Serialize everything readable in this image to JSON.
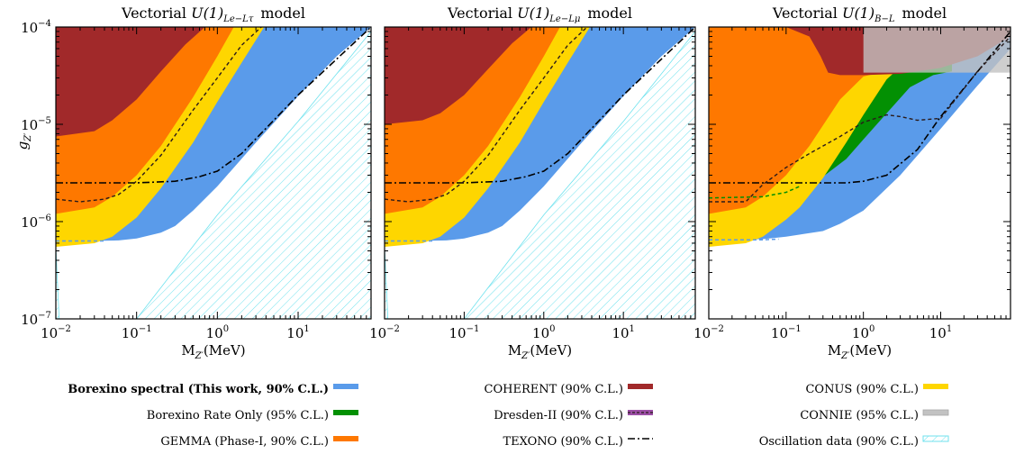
{
  "chart_data": [
    {
      "type": "area",
      "title_prefix": "Vectorial ",
      "title_math": "U(1)",
      "title_sub": "Le−Lτ",
      "title_suffix": "model",
      "xlabel": "M",
      "xlabel_sub": "Z′",
      "xlabel_unit": "(MeV)",
      "ylabel": "g",
      "ylabel_sub": "Z′",
      "x_scale": "log",
      "y_scale": "log",
      "xlim": [
        0.01,
        80
      ],
      "ylim": [
        1e-07,
        0.0001
      ],
      "x_ticks": [
        {
          "v": 0.01,
          "b": "10",
          "e": "−2"
        },
        {
          "v": 0.1,
          "b": "10",
          "e": "−1"
        },
        {
          "v": 1,
          "b": "10",
          "e": "0"
        },
        {
          "v": 10,
          "b": "10",
          "e": "1"
        }
      ],
      "y_ticks": [
        {
          "v": 1e-07,
          "b": "10",
          "e": "−7"
        },
        {
          "v": 1e-06,
          "b": "10",
          "e": "−6"
        },
        {
          "v": 1e-05,
          "b": "10",
          "e": "−5"
        },
        {
          "v": 0.0001,
          "b": "10",
          "e": "−4"
        }
      ],
      "series": [
        {
          "key": "oscillation",
          "x": [
            0.01,
            0.011,
            0.1,
            1,
            10,
            80
          ],
          "y": [
            5.5e-07,
            1e-07,
            1e-07,
            1.17e-06,
            1.07e-05,
            9e-05
          ]
        },
        {
          "key": "borexino",
          "x": [
            0.01,
            0.02,
            0.06,
            0.1,
            0.2,
            0.3,
            0.5,
            1,
            3,
            10,
            30,
            80
          ],
          "y": [
            6.3e-07,
            6.3e-07,
            6.4e-07,
            6.7e-07,
            7.7e-07,
            9e-07,
            1.3e-06,
            2.3e-06,
            6.5e-06,
            1.95e-05,
            5e-05,
            0.0001
          ]
        },
        {
          "key": "conus",
          "x": [
            0.01,
            0.03,
            0.05,
            0.1,
            0.2,
            0.5,
            1,
            2,
            3.8
          ],
          "y": [
            5.5e-07,
            6e-07,
            7e-07,
            1.1e-06,
            2.2e-06,
            6.5e-06,
            1.7e-05,
            4.3e-05,
            0.0001
          ]
        },
        {
          "key": "gemma",
          "x": [
            0.01,
            0.03,
            0.05,
            0.1,
            0.2,
            0.5,
            1,
            1.6
          ],
          "y": [
            1.2e-06,
            1.4e-06,
            1.8e-06,
            3e-06,
            6e-06,
            1.9e-05,
            5e-05,
            0.0001
          ]
        },
        {
          "key": "coherent",
          "x": [
            0.01,
            0.03,
            0.05,
            0.1,
            0.2,
            0.4,
            0.7
          ],
          "y": [
            7.5e-06,
            8.5e-06,
            1.1e-05,
            1.8e-05,
            3.5e-05,
            6.6e-05,
            0.0001
          ]
        },
        {
          "key": "texono",
          "x": [
            0.01,
            0.1,
            0.3,
            0.6,
            1,
            2,
            5,
            10,
            80
          ],
          "y": [
            2.5e-06,
            2.5e-06,
            2.6e-06,
            2.9e-06,
            3.3e-06,
            5e-06,
            1.1e-05,
            2e-05,
            0.0001
          ]
        },
        {
          "key": "dresden",
          "x": [
            0.01,
            0.02,
            0.04,
            0.06,
            0.1,
            0.2,
            0.5,
            1,
            2,
            3.5
          ],
          "y": [
            1.7e-06,
            1.6e-06,
            1.7e-06,
            1.9e-06,
            2.6e-06,
            4.8e-06,
            1.4e-05,
            3e-05,
            6.5e-05,
            0.0001
          ]
        }
      ]
    },
    {
      "type": "area",
      "title_prefix": "Vectorial ",
      "title_math": "U(1)",
      "title_sub": "Le−Lμ",
      "title_suffix": "model",
      "xlabel": "M",
      "xlabel_sub": "Z′",
      "xlabel_unit": "(MeV)",
      "x_scale": "log",
      "y_scale": "log",
      "xlim": [
        0.01,
        80
      ],
      "ylim": [
        1e-07,
        0.0001
      ],
      "x_ticks": [
        {
          "v": 0.01,
          "b": "10",
          "e": "−2"
        },
        {
          "v": 0.1,
          "b": "10",
          "e": "−1"
        },
        {
          "v": 1,
          "b": "10",
          "e": "0"
        },
        {
          "v": 10,
          "b": "10",
          "e": "1"
        }
      ],
      "series": [
        {
          "key": "oscillation",
          "x": [
            0.01,
            0.011,
            0.1,
            1,
            10,
            80
          ],
          "y": [
            5.5e-07,
            1e-07,
            1e-07,
            1.17e-06,
            1.07e-05,
            9e-05
          ]
        },
        {
          "key": "borexino",
          "x": [
            0.01,
            0.02,
            0.06,
            0.1,
            0.2,
            0.3,
            0.5,
            1,
            3,
            10,
            30,
            80
          ],
          "y": [
            6.3e-07,
            6.3e-07,
            6.4e-07,
            6.7e-07,
            7.7e-07,
            9e-07,
            1.3e-06,
            2.3e-06,
            6.5e-06,
            1.95e-05,
            5e-05,
            0.0001
          ]
        },
        {
          "key": "conus",
          "x": [
            0.01,
            0.03,
            0.05,
            0.1,
            0.2,
            0.5,
            1,
            2,
            3.8
          ],
          "y": [
            5.5e-07,
            6e-07,
            7e-07,
            1.1e-06,
            2.2e-06,
            6.5e-06,
            1.7e-05,
            4.3e-05,
            0.0001
          ]
        },
        {
          "key": "gemma",
          "x": [
            0.01,
            0.03,
            0.05,
            0.1,
            0.2,
            0.5,
            1,
            1.6
          ],
          "y": [
            1.2e-06,
            1.4e-06,
            1.8e-06,
            3e-06,
            6e-06,
            1.9e-05,
            5e-05,
            0.0001
          ]
        },
        {
          "key": "coherent",
          "x": [
            0.01,
            0.03,
            0.05,
            0.1,
            0.2,
            0.4,
            0.7
          ],
          "y": [
            1e-05,
            1.1e-05,
            1.3e-05,
            2e-05,
            3.7e-05,
            6.8e-05,
            0.0001
          ]
        },
        {
          "key": "texono",
          "x": [
            0.01,
            0.1,
            0.3,
            0.6,
            1,
            2,
            5,
            10,
            80
          ],
          "y": [
            2.5e-06,
            2.5e-06,
            2.6e-06,
            2.9e-06,
            3.3e-06,
            5e-06,
            1.1e-05,
            2e-05,
            0.0001
          ]
        },
        {
          "key": "dresden",
          "x": [
            0.01,
            0.02,
            0.04,
            0.06,
            0.1,
            0.2,
            0.5,
            1,
            2,
            3.5
          ],
          "y": [
            1.7e-06,
            1.6e-06,
            1.7e-06,
            1.9e-06,
            2.6e-06,
            4.8e-06,
            1.4e-05,
            3e-05,
            6.5e-05,
            0.0001
          ]
        }
      ]
    },
    {
      "type": "area",
      "title_prefix": "Vectorial ",
      "title_math": "U(1)",
      "title_sub": "B−L",
      "title_suffix": "model",
      "xlabel": "M",
      "xlabel_sub": "Z′",
      "xlabel_unit": "(MeV)",
      "x_scale": "log",
      "y_scale": "log",
      "xlim": [
        0.01,
        80
      ],
      "ylim": [
        1e-07,
        0.0001
      ],
      "x_ticks": [
        {
          "v": 0.01,
          "b": "10",
          "e": "−2"
        },
        {
          "v": 0.1,
          "b": "10",
          "e": "−1"
        },
        {
          "v": 1,
          "b": "10",
          "e": "0"
        },
        {
          "v": 10,
          "b": "10",
          "e": "1"
        }
      ],
      "series": [
        {
          "key": "borexino",
          "x": [
            0.01,
            0.05,
            0.1,
            0.3,
            0.5,
            1,
            3,
            10,
            30,
            80
          ],
          "y": [
            6.5e-07,
            6.6e-07,
            7e-07,
            8e-07,
            9.5e-07,
            1.3e-06,
            3e-06,
            9e-06,
            2.5e-05,
            6e-05
          ]
        },
        {
          "key": "rate",
          "x": [
            0.15,
            0.3,
            0.6,
            1,
            2,
            4,
            8,
            14
          ],
          "y": [
            2.3e-06,
            2.9e-06,
            4.4e-06,
            7e-06,
            1.3e-05,
            2.4e-05,
            3.2e-05,
            3.5e-05
          ]
        },
        {
          "key": "conus",
          "x": [
            0.01,
            0.03,
            0.05,
            0.1,
            0.15,
            0.3,
            0.6,
            1,
            2,
            2.6
          ],
          "y": [
            5.5e-07,
            6e-07,
            7e-07,
            1.05e-06,
            1.4e-06,
            2.8e-06,
            6.5e-06,
            1.25e-05,
            2.9e-05,
            3.5e-05
          ]
        },
        {
          "key": "gemma",
          "x": [
            0.01,
            0.03,
            0.05,
            0.1,
            0.2,
            0.5,
            1,
            1.4
          ],
          "y": [
            1.2e-06,
            1.4e-06,
            1.8e-06,
            3e-06,
            6e-06,
            1.8e-05,
            3.1e-05,
            3.3e-05
          ]
        },
        {
          "key": "coherent",
          "x": [
            0.01,
            0.1,
            0.2,
            0.28,
            0.35,
            0.5,
            1,
            3,
            10,
            30,
            80
          ],
          "y": [
            0.0001,
            0.0001,
            8e-05,
            5e-05,
            3.4e-05,
            3.2e-05,
            3.2e-05,
            3.3e-05,
            3.8e-05,
            5e-05,
            8e-05
          ]
        },
        {
          "key": "connie",
          "x": [
            1,
            1,
            80,
            80
          ],
          "y": [
            0.0001,
            3.4e-05,
            3.4e-05,
            0.0001
          ]
        },
        {
          "key": "texono",
          "x": [
            0.01,
            0.1,
            0.3,
            0.6,
            1,
            2,
            5,
            10,
            80
          ],
          "y": [
            2.5e-06,
            2.5e-06,
            2.5e-06,
            2.5e-06,
            2.6e-06,
            3e-06,
            5.5e-06,
            1.2e-05,
            9e-05
          ]
        },
        {
          "key": "dresden",
          "x": [
            0.01,
            0.03,
            0.05,
            0.1,
            0.2,
            0.5,
            1,
            2,
            3,
            5,
            10,
            30,
            80
          ],
          "y": [
            1.6e-06,
            1.6e-06,
            2.4e-06,
            3.6e-06,
            5e-06,
            7.5e-06,
            1.05e-05,
            1.25e-05,
            1.2e-05,
            1.1e-05,
            1.15e-05,
            3.5e-05,
            8e-05
          ]
        },
        {
          "key": "rate_dash",
          "x": [
            0.01,
            0.05,
            0.1,
            0.15
          ],
          "y": [
            1.75e-06,
            1.8e-06,
            2e-06,
            2.3e-06
          ]
        },
        {
          "key": "osc_dash",
          "x": [
            0.01,
            0.05,
            0.08
          ],
          "y": [
            6.5e-07,
            6.5e-07,
            6.6e-07
          ]
        }
      ]
    }
  ],
  "legend": [
    {
      "key": "borexino",
      "label": "Borexino spectral (This work, 90% C.L.)",
      "bold": true
    },
    {
      "key": "rate",
      "label": "Borexino Rate Only (95% C.L.)"
    },
    {
      "key": "gemma",
      "label": "GEMMA (Phase-I, 90% C.L.)"
    },
    {
      "key": "coherent",
      "label": "COHERENT (90% C.L.)"
    },
    {
      "key": "dresden",
      "label": "Dresden-II (90% C.L.)"
    },
    {
      "key": "texono",
      "label": "TEXONO (90% C.L.)"
    },
    {
      "key": "conus",
      "label": "CONUS (90% C.L.)"
    },
    {
      "key": "connie",
      "label": "CONNIE (95% C.L.)"
    },
    {
      "key": "oscillation",
      "label": "Oscillation data (90% C.L.)"
    }
  ],
  "colors": {
    "borexino": "#5a9bea",
    "rate": "#039003",
    "gemma": "#fe7800",
    "coherent": "#a1292a",
    "dresden": "#9c4fa6",
    "texono": "#000000",
    "conus": "#fed600",
    "connie": "#c2c2c2",
    "oscillation": "#6fe2ee"
  }
}
